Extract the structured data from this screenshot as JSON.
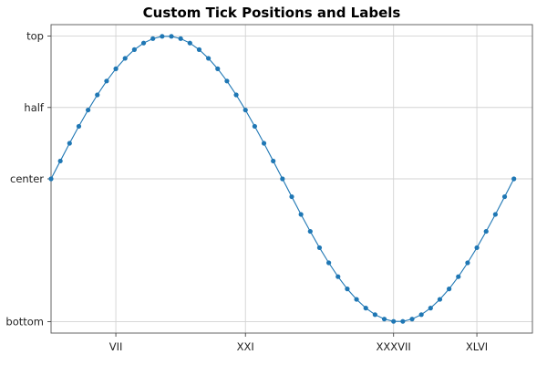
{
  "chart_data": {
    "type": "line",
    "title": "Custom Tick Positions and Labels",
    "xlabel": "",
    "ylabel": "",
    "xlim": [
      0,
      52
    ],
    "ylim": [
      -1.08,
      1.08
    ],
    "grid": true,
    "legend": "none",
    "colors": {
      "series": "#1f77b4",
      "grid": "#d3d3d3",
      "frame": "#555555"
    },
    "x_ticks": [
      {
        "value": 7,
        "label": "VII"
      },
      {
        "value": 21,
        "label": "XXI"
      },
      {
        "value": 37,
        "label": "XXXVII"
      },
      {
        "value": 46,
        "label": "XLVI"
      }
    ],
    "y_ticks": [
      {
        "value": -1,
        "label": "bottom"
      },
      {
        "value": 0,
        "label": "center"
      },
      {
        "value": 0.5,
        "label": "half"
      },
      {
        "value": 1,
        "label": "top"
      }
    ],
    "series": [
      {
        "marker": "circle",
        "x": [
          0,
          1,
          2,
          3,
          4,
          5,
          6,
          7,
          8,
          9,
          10,
          11,
          12,
          13,
          14,
          15,
          16,
          17,
          18,
          19,
          20,
          21,
          22,
          23,
          24,
          25,
          26,
          27,
          28,
          29,
          30,
          31,
          32,
          33,
          34,
          35,
          36,
          37,
          38,
          39,
          40,
          41,
          42,
          43,
          44,
          45,
          46,
          47,
          48,
          49,
          50
        ],
        "y": [
          0,
          0.125,
          0.249,
          0.368,
          0.482,
          0.588,
          0.685,
          0.771,
          0.844,
          0.905,
          0.951,
          0.982,
          0.998,
          0.998,
          0.982,
          0.951,
          0.905,
          0.844,
          0.771,
          0.685,
          0.588,
          0.482,
          0.368,
          0.249,
          0.125,
          0,
          -0.125,
          -0.249,
          -0.368,
          -0.482,
          -0.588,
          -0.685,
          -0.771,
          -0.844,
          -0.905,
          -0.951,
          -0.982,
          -0.998,
          -0.998,
          -0.982,
          -0.951,
          -0.905,
          -0.844,
          -0.771,
          -0.685,
          -0.588,
          -0.482,
          -0.368,
          -0.249,
          -0.125,
          0
        ]
      }
    ]
  }
}
